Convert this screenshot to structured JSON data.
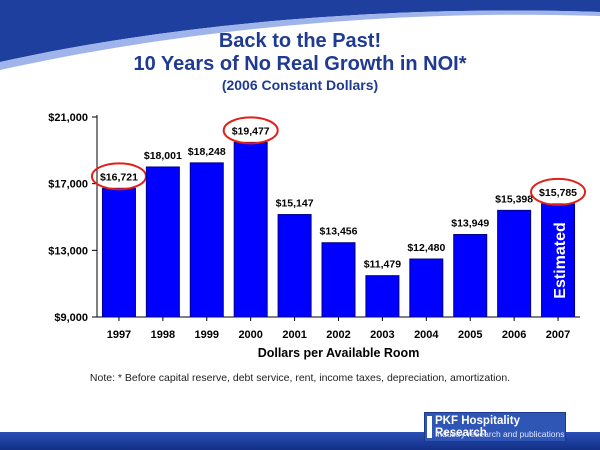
{
  "title_line1": "Back to the Past!",
  "title_line2": "10 Years of No Real Growth in NOI*",
  "title_line3": "(2006 Constant Dollars)",
  "note": "Note: * Before capital reserve, debt service, rent, income taxes, depreciation, amortization.",
  "logo": {
    "main": "PKF Hospitality Research",
    "sub": "Industry research and publications"
  },
  "colors": {
    "bar": "#0000ff",
    "bar_dark": "#00008b",
    "highlight_circle": "#e0201b",
    "title": "#1f3a93",
    "footer": "#1f3f9f"
  },
  "chart_data": {
    "type": "bar",
    "categories": [
      "1997",
      "1998",
      "1999",
      "2000",
      "2001",
      "2002",
      "2003",
      "2004",
      "2005",
      "2006",
      "2007"
    ],
    "values": [
      16721,
      18001,
      18248,
      19477,
      15147,
      13456,
      11479,
      12480,
      13949,
      15398,
      15785
    ],
    "value_labels": [
      "$16,721",
      "$18,001",
      "$18,248",
      "$19,477",
      "$15,147",
      "$13,456",
      "$11,479",
      "$12,480",
      "$13,949",
      "$15,398",
      "$15,785"
    ],
    "ylim": [
      9000,
      21000
    ],
    "yticks": [
      9000,
      13000,
      17000,
      21000
    ],
    "ytick_labels": [
      "$9,000",
      "$13,000",
      "$17,000",
      "$21,000"
    ],
    "xlabel": "Dollars per Available Room",
    "highlighted": [
      "1997",
      "2000",
      "2007"
    ],
    "bar_annotation": {
      "category": "2007",
      "text": "Estimated"
    }
  }
}
